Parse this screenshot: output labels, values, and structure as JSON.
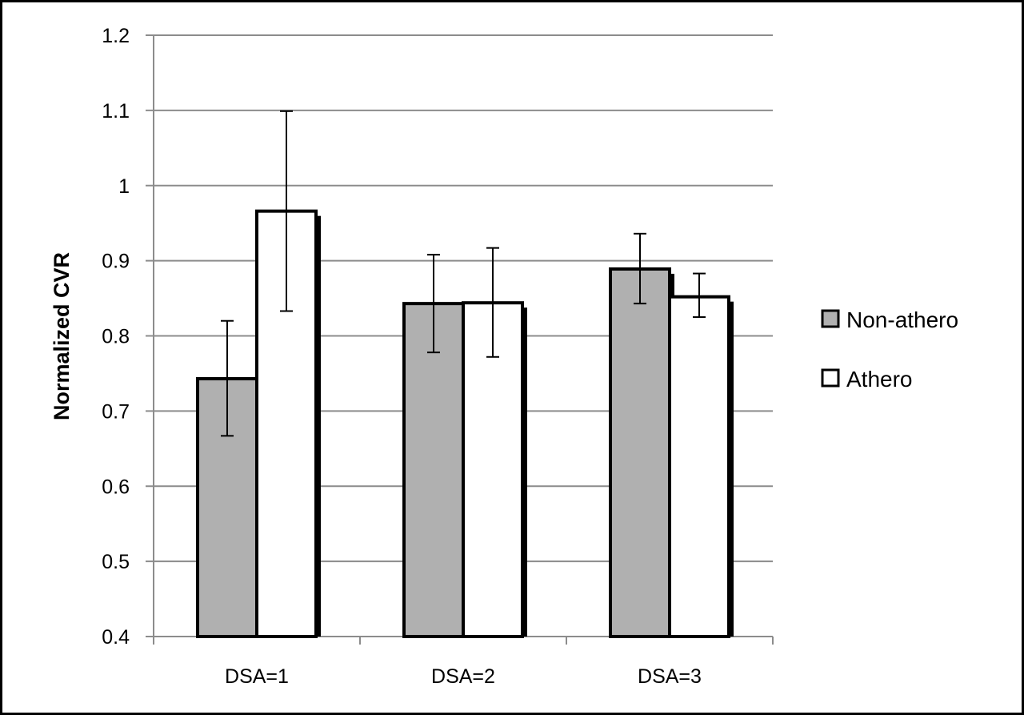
{
  "chart_data": {
    "type": "bar",
    "title": "",
    "xlabel": "",
    "ylabel": "Normalized CVR",
    "ylim": [
      0.4,
      1.2
    ],
    "yticks": [
      "0.4",
      "0.5",
      "0.6",
      "0.7",
      "0.8",
      "0.9",
      "1",
      "1.1",
      "1.2"
    ],
    "grid": true,
    "legend_position": "right",
    "categories": [
      "DSA=1",
      "DSA=2",
      "DSA=3"
    ],
    "series": [
      {
        "name": "Non-athero",
        "color": "#b0b0b0",
        "values": [
          0.743,
          0.843,
          0.889
        ],
        "err_low": [
          0.667,
          0.778,
          0.843
        ],
        "err_high": [
          0.82,
          0.908,
          0.936
        ]
      },
      {
        "name": "Athero",
        "color": "#ffffff",
        "values": [
          0.966,
          0.844,
          0.852
        ],
        "err_low": [
          0.833,
          0.772,
          0.825
        ],
        "err_high": [
          1.099,
          0.917,
          0.883
        ]
      }
    ]
  }
}
